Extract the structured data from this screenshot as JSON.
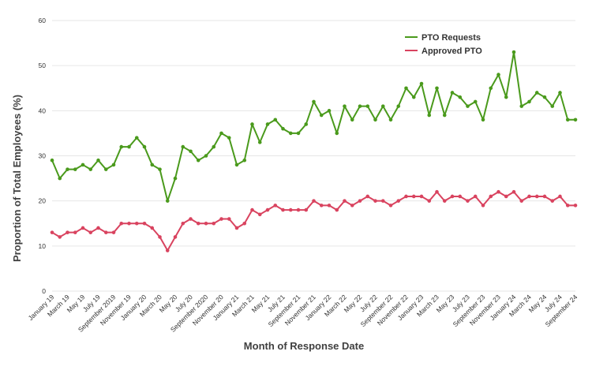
{
  "chart_data": {
    "type": "line",
    "xlabel": "Month of Response Date",
    "ylabel": "Proportion of Total Employees (%)",
    "ylim": [
      0,
      60
    ],
    "yticks": [
      0,
      10,
      20,
      30,
      40,
      50,
      60
    ],
    "grid": "horizontal",
    "legend_position": "top-right",
    "x": [
      "2019-01",
      "2019-02",
      "2019-03",
      "2019-04",
      "2019-05",
      "2019-06",
      "2019-07",
      "2019-08",
      "2019-09",
      "2019-10",
      "2019-11",
      "2019-12",
      "2020-01",
      "2020-02",
      "2020-03",
      "2020-04",
      "2020-05",
      "2020-06",
      "2020-07",
      "2020-08",
      "2020-09",
      "2020-10",
      "2020-11",
      "2020-12",
      "2021-01",
      "2021-02",
      "2021-03",
      "2021-04",
      "2021-05",
      "2021-06",
      "2021-07",
      "2021-08",
      "2021-09",
      "2021-10",
      "2021-11",
      "2021-12",
      "2022-01",
      "2022-02",
      "2022-03",
      "2022-04",
      "2022-05",
      "2022-06",
      "2022-07",
      "2022-08",
      "2022-09",
      "2022-10",
      "2022-11",
      "2022-12",
      "2023-01",
      "2023-02",
      "2023-03",
      "2023-04",
      "2023-05",
      "2023-06",
      "2023-07",
      "2023-08",
      "2023-09",
      "2023-10",
      "2023-11",
      "2023-12",
      "2024-01",
      "2024-02",
      "2024-03",
      "2024-04",
      "2024-05",
      "2024-06",
      "2024-07",
      "2024-08",
      "2024-09"
    ],
    "x_tick_labels": [
      "January 19",
      "March 19",
      "May 19",
      "July 19",
      "September 2019",
      "November 19",
      "January 20",
      "March 20",
      "May 20",
      "July 20",
      "September 2020",
      "November 20",
      "January 21",
      "March 21",
      "May 21",
      "July 21",
      "September 21",
      "November 21",
      "January 22",
      "March 22",
      "May 22",
      "July 22",
      "September 22",
      "November 22",
      "January 23",
      "March 23",
      "May 23",
      "July 23",
      "September 23",
      "November 23",
      "January 24",
      "March 24",
      "May 24",
      "July 24",
      "September 24"
    ],
    "series": [
      {
        "name": "PTO Requests",
        "color": "#4a9a1c",
        "values": [
          29,
          25,
          27,
          27,
          28,
          27,
          29,
          27,
          28,
          32,
          32,
          34,
          32,
          28,
          27,
          20,
          25,
          32,
          31,
          29,
          30,
          32,
          35,
          34,
          28,
          29,
          37,
          33,
          37,
          38,
          36,
          35,
          35,
          37,
          42,
          39,
          40,
          35,
          41,
          38,
          41,
          41,
          38,
          41,
          38,
          41,
          45,
          43,
          46,
          39,
          45,
          39,
          44,
          43,
          41,
          42,
          38,
          45,
          48,
          43,
          53,
          41,
          42,
          44,
          43,
          41,
          44,
          38,
          38
        ]
      },
      {
        "name": "Approved PTO",
        "color": "#d9435f",
        "values": [
          13,
          12,
          13,
          13,
          14,
          13,
          14,
          13,
          13,
          15,
          15,
          15,
          15,
          14,
          12,
          9,
          12,
          15,
          16,
          15,
          15,
          15,
          16,
          16,
          14,
          15,
          18,
          17,
          18,
          19,
          18,
          18,
          18,
          18,
          20,
          19,
          19,
          18,
          20,
          19,
          20,
          21,
          20,
          20,
          19,
          20,
          21,
          21,
          21,
          20,
          22,
          20,
          21,
          21,
          20,
          21,
          19,
          21,
          22,
          21,
          22,
          20,
          21,
          21,
          21,
          20,
          21,
          19,
          19
        ]
      }
    ]
  }
}
